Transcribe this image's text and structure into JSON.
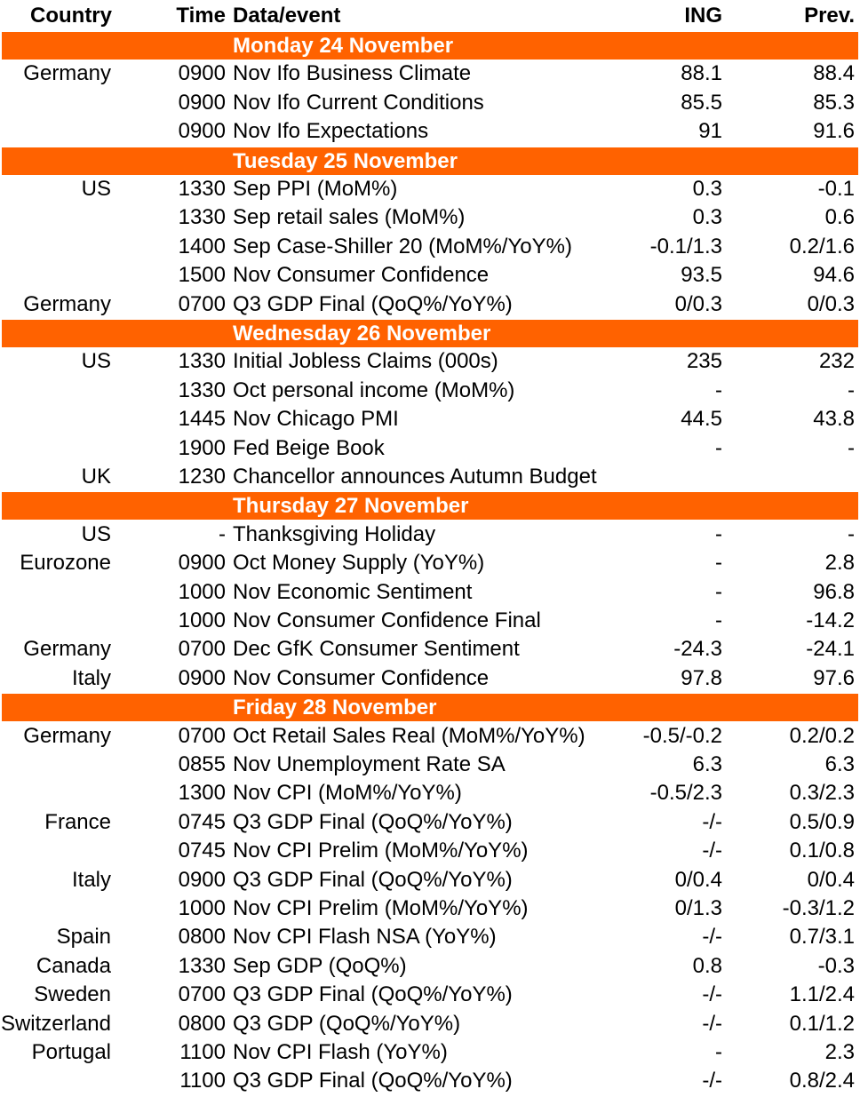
{
  "header": {
    "country": "Country",
    "time": "Time",
    "event": "Data/event",
    "ing": "ING",
    "prev": "Prev."
  },
  "sections": [
    {
      "day": "Monday 24 November",
      "rows": [
        {
          "country": "Germany",
          "time": "0900",
          "event": "Nov Ifo Business Climate",
          "ing": "88.1",
          "prev": "88.4"
        },
        {
          "time": "0900",
          "event": "Nov Ifo Current Conditions",
          "ing": "85.5",
          "prev": "85.3"
        },
        {
          "time": "0900",
          "event": "Nov Ifo Expectations",
          "ing": "91",
          "prev": "91.6"
        }
      ]
    },
    {
      "day": "Tuesday 25 November",
      "rows": [
        {
          "country": "US",
          "time": "1330",
          "event": "Sep PPI (MoM%)",
          "ing": "0.3",
          "prev": "-0.1"
        },
        {
          "time": "1330",
          "event": "Sep retail sales (MoM%)",
          "ing": "0.3",
          "prev": "0.6"
        },
        {
          "time": "1400",
          "event": "Sep Case-Shiller 20 (MoM%/YoY%)",
          "ing": "-0.1/1.3",
          "prev": "0.2/1.6"
        },
        {
          "time": "1500",
          "event": "Nov Consumer Confidence",
          "ing": "93.5",
          "prev": "94.6"
        },
        {
          "country": "Germany",
          "time": "0700",
          "event": "Q3 GDP Final (QoQ%/YoY%)",
          "ing": "0/0.3",
          "prev": "0/0.3"
        }
      ]
    },
    {
      "day": "Wednesday 26 November",
      "rows": [
        {
          "country": "US",
          "time": "1330",
          "event": "Initial Jobless Claims (000s)",
          "ing": "235",
          "prev": "232"
        },
        {
          "time": "1330",
          "event": "Oct personal income (MoM%)",
          "ing": "-",
          "prev": "-"
        },
        {
          "time": "1445",
          "event": "Nov Chicago PMI",
          "ing": "44.5",
          "prev": "43.8"
        },
        {
          "time": "1900",
          "event": "Fed Beige Book",
          "ing": "-",
          "prev": "-"
        },
        {
          "country": "UK",
          "time": "1230",
          "event": "Chancellor announces Autumn Budget"
        }
      ]
    },
    {
      "day": "Thursday 27 November",
      "rows": [
        {
          "country": "US",
          "time": "-",
          "event": "Thanksgiving Holiday",
          "ing": "-",
          "prev": "-"
        },
        {
          "country": "Eurozone",
          "time": "0900",
          "event": "Oct Money Supply (YoY%)",
          "ing": "-",
          "prev": "2.8"
        },
        {
          "time": "1000",
          "event": "Nov Economic Sentiment",
          "ing": "-",
          "prev": "96.8"
        },
        {
          "time": "1000",
          "event": "Nov Consumer Confidence Final",
          "ing": "-",
          "prev": "-14.2"
        },
        {
          "country": "Germany",
          "time": "0700",
          "event": "Dec GfK Consumer Sentiment",
          "ing": "-24.3",
          "prev": "-24.1"
        },
        {
          "country": "Italy",
          "time": "0900",
          "event": "Nov Consumer Confidence",
          "ing": "97.8",
          "prev": "97.6"
        }
      ]
    },
    {
      "day": "Friday 28 November",
      "rows": [
        {
          "country": "Germany",
          "time": "0700",
          "event": "Oct Retail Sales Real (MoM%/YoY%)",
          "ing": "-0.5/-0.2",
          "prev": "0.2/0.2"
        },
        {
          "time": "0855",
          "event": "Nov Unemployment Rate SA",
          "ing": "6.3",
          "prev": "6.3"
        },
        {
          "time": "1300",
          "event": "Nov CPI (MoM%/YoY%)",
          "ing": "-0.5/2.3",
          "prev": "0.3/2.3"
        },
        {
          "country": "France",
          "time": "0745",
          "event": "Q3 GDP Final (QoQ%/YoY%)",
          "ing": "-/-",
          "prev": "0.5/0.9"
        },
        {
          "time": "0745",
          "event": "Nov CPI  Prelim (MoM%/YoY%)",
          "ing": "-/-",
          "prev": "0.1/0.8"
        },
        {
          "country": "Italy",
          "time": "0900",
          "event": "Q3 GDP Final (QoQ%/YoY%)",
          "ing": "0/0.4",
          "prev": "0/0.4"
        },
        {
          "time": "1000",
          "event": "Nov CPI Prelim (MoM%/YoY%)",
          "ing": "0/1.3",
          "prev": "-0.3/1.2"
        },
        {
          "country": "Spain",
          "time": "0800",
          "event": "Nov CPI Flash NSA (YoY%)",
          "ing": "-/-",
          "prev": "0.7/3.1"
        },
        {
          "country": "Canada",
          "time": "1330",
          "event": "Sep GDP (QoQ%)",
          "ing": "0.8",
          "prev": "-0.3"
        },
        {
          "country": "Sweden",
          "time": "0700",
          "event": "Q3 GDP Final (QoQ%/YoY%)",
          "ing": "-/-",
          "prev": "1.1/2.4"
        },
        {
          "country": "Switzerland",
          "time": "0800",
          "event": "Q3 GDP (QoQ%/YoY%)",
          "ing": "-/-",
          "prev": "0.1/1.2"
        },
        {
          "country": "Portugal",
          "time": "1100",
          "event": "Nov CPI Flash (YoY%)",
          "ing": "-",
          "prev": "2.3"
        },
        {
          "time": "1100",
          "event": "Q3 GDP Final (QoQ%/YoY%)",
          "ing": "-/-",
          "prev": "0.8/2.4"
        }
      ]
    }
  ]
}
